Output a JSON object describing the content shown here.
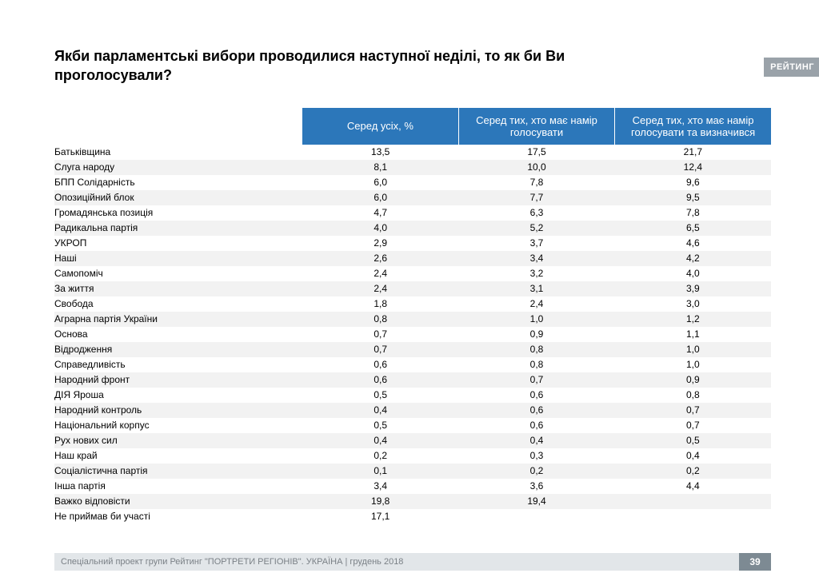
{
  "title": "Якби парламентські вибори проводилися наступної неділі, то як би Ви проголосували?",
  "logo": "РЕЙТИНГ",
  "table": {
    "type": "table",
    "header_bg": "#2c77ba",
    "header_fg": "#ffffff",
    "row_odd_bg": "#ffffff",
    "row_even_bg": "#f2f2f2",
    "text_color": "#000000",
    "label_fontsize": 12,
    "header_fontsize": 13,
    "columns": [
      "Серед усіх, %",
      "Серед тих, хто має намір голосувати",
      "Серед тих, хто має намір голосувати та визначився"
    ],
    "rows": [
      {
        "label": "Батьківщина",
        "v": [
          "13,5",
          "17,5",
          "21,7"
        ]
      },
      {
        "label": "Слуга народу",
        "v": [
          "8,1",
          "10,0",
          "12,4"
        ]
      },
      {
        "label": "БПП Солідарність",
        "v": [
          "6,0",
          "7,8",
          "9,6"
        ]
      },
      {
        "label": "Опозиційний блок",
        "v": [
          "6,0",
          "7,7",
          "9,5"
        ]
      },
      {
        "label": "Громадянська позиція",
        "v": [
          "4,7",
          "6,3",
          "7,8"
        ]
      },
      {
        "label": "Радикальна партія",
        "v": [
          "4,0",
          "5,2",
          "6,5"
        ]
      },
      {
        "label": "УКРОП",
        "v": [
          "2,9",
          "3,7",
          "4,6"
        ]
      },
      {
        "label": "Наші",
        "v": [
          "2,6",
          "3,4",
          "4,2"
        ]
      },
      {
        "label": "Самопоміч",
        "v": [
          "2,4",
          "3,2",
          "4,0"
        ]
      },
      {
        "label": "За життя",
        "v": [
          "2,4",
          "3,1",
          "3,9"
        ]
      },
      {
        "label": "Свобода",
        "v": [
          "1,8",
          "2,4",
          "3,0"
        ]
      },
      {
        "label": "Аграрна партія України",
        "v": [
          "0,8",
          "1,0",
          "1,2"
        ]
      },
      {
        "label": "Основа",
        "v": [
          "0,7",
          "0,9",
          "1,1"
        ]
      },
      {
        "label": "Відродження",
        "v": [
          "0,7",
          "0,8",
          "1,0"
        ]
      },
      {
        "label": "Справедливість",
        "v": [
          "0,6",
          "0,8",
          "1,0"
        ]
      },
      {
        "label": "Народний фронт",
        "v": [
          "0,6",
          "0,7",
          "0,9"
        ]
      },
      {
        "label": "ДІЯ Яроша",
        "v": [
          "0,5",
          "0,6",
          "0,8"
        ]
      },
      {
        "label": "Народний контроль",
        "v": [
          "0,4",
          "0,6",
          "0,7"
        ]
      },
      {
        "label": "Національний корпус",
        "v": [
          "0,5",
          "0,6",
          "0,7"
        ]
      },
      {
        "label": "Рух нових сил",
        "v": [
          "0,4",
          "0,4",
          "0,5"
        ]
      },
      {
        "label": "Наш край",
        "v": [
          "0,2",
          "0,3",
          "0,4"
        ]
      },
      {
        "label": "Соціалістична партія",
        "v": [
          "0,1",
          "0,2",
          "0,2"
        ]
      },
      {
        "label": "Інша партія",
        "v": [
          "3,4",
          "3,6",
          "4,4"
        ]
      },
      {
        "label": "Важко відповісти",
        "v": [
          "19,8",
          "19,4",
          ""
        ]
      },
      {
        "label": "Не приймав би участі",
        "v": [
          "17,1",
          "",
          ""
        ]
      }
    ]
  },
  "footer": {
    "text": "Спеціальний проект групи Рейтинг \"ПОРТРЕТИ РЕГІОНІВ\". УКРАЇНА | грудень 2018",
    "page": "39",
    "bar_bg": "#e2e6e9",
    "text_color": "#7a8086",
    "pagenum_bg": "#7d8a93"
  }
}
